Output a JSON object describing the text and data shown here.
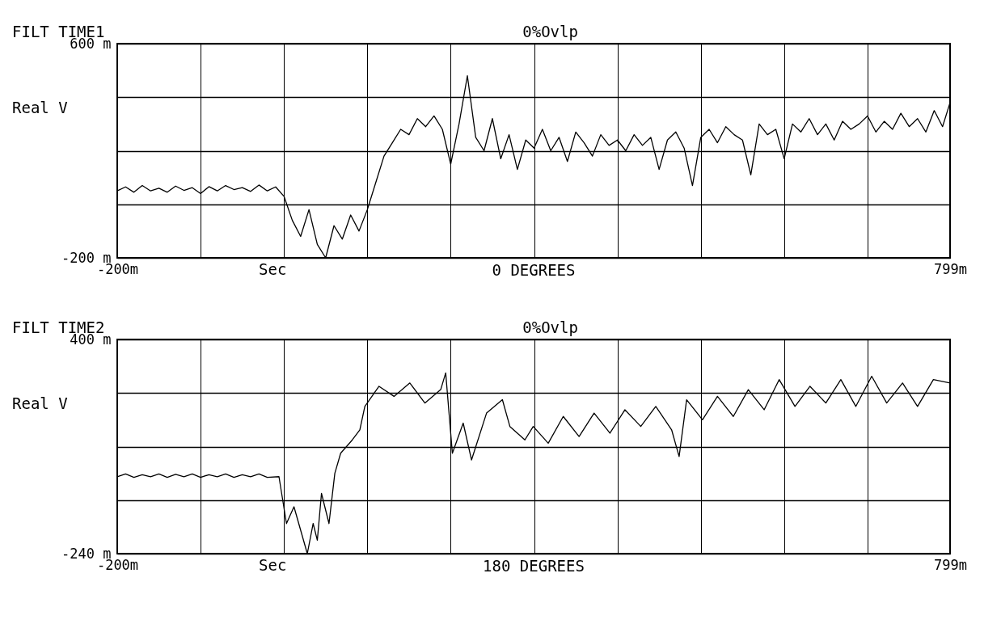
{
  "chart_data": [
    {
      "type": "line",
      "title": "FILT TIME1",
      "subtitle": "0%Ovlp",
      "xlabel": "Sec",
      "ylabel": "Real V",
      "annotations": [
        "0 DEGREES"
      ],
      "x": [
        -200,
        -190,
        -180,
        -170,
        -160,
        -150,
        -140,
        -130,
        -120,
        -110,
        -100,
        -90,
        -80,
        -70,
        -60,
        -50,
        -40,
        -30,
        -20,
        -10,
        0,
        10,
        20,
        30,
        40,
        50,
        60,
        70,
        80,
        90,
        100,
        110,
        120,
        130,
        140,
        150,
        160,
        170,
        180,
        190,
        200,
        210,
        220,
        230,
        240,
        250,
        260,
        270,
        280,
        290,
        300,
        310,
        320,
        330,
        340,
        350,
        360,
        370,
        380,
        390,
        400,
        410,
        420,
        430,
        440,
        450,
        460,
        470,
        480,
        490,
        500,
        510,
        520,
        530,
        540,
        550,
        560,
        570,
        580,
        590,
        600,
        610,
        620,
        630,
        640,
        650,
        660,
        670,
        680,
        690,
        700,
        710,
        720,
        730,
        740,
        750,
        760,
        770,
        780,
        790,
        799
      ],
      "series": [
        {
          "color": "#000000",
          "values": [
            50,
            65,
            45,
            70,
            50,
            60,
            45,
            68,
            52,
            62,
            40,
            66,
            50,
            70,
            55,
            62,
            48,
            72,
            50,
            65,
            30,
            -60,
            -120,
            -20,
            -150,
            -200,
            -80,
            -130,
            -40,
            -100,
            -20,
            80,
            180,
            230,
            280,
            260,
            320,
            290,
            330,
            280,
            150,
            300,
            480,
            250,
            200,
            320,
            170,
            260,
            130,
            240,
            210,
            280,
            200,
            250,
            160,
            270,
            230,
            180,
            260,
            220,
            240,
            200,
            260,
            220,
            250,
            130,
            240,
            270,
            210,
            70,
            250,
            280,
            230,
            290,
            260,
            240,
            110,
            300,
            260,
            280,
            170,
            300,
            270,
            320,
            260,
            300,
            240,
            310,
            280,
            300,
            330,
            270,
            310,
            280,
            340,
            290,
            320,
            270,
            350,
            290,
            380
          ]
        }
      ],
      "xlim": [
        -200,
        799
      ],
      "xticks": [
        {
          "value": -200,
          "label": "-200m"
        },
        {
          "value": -100,
          "label": null
        },
        {
          "value": 0,
          "label": null
        },
        {
          "value": 100,
          "label": null
        },
        {
          "value": 200,
          "label": null
        },
        {
          "value": 300,
          "label": null
        },
        {
          "value": 400,
          "label": null
        },
        {
          "value": 500,
          "label": null
        },
        {
          "value": 600,
          "label": null
        },
        {
          "value": 700,
          "label": null
        },
        {
          "value": 799,
          "label": "799m"
        }
      ],
      "ylim": [
        -200,
        600
      ],
      "yticks": [
        {
          "value": -200,
          "label": "-200 m"
        },
        {
          "value": 0,
          "label": null
        },
        {
          "value": 200,
          "label": null
        },
        {
          "value": 400,
          "label": null
        },
        {
          "value": 600,
          "label": "600 m"
        }
      ],
      "grid": true,
      "legend": false
    },
    {
      "type": "line",
      "title": "FILT TIME2",
      "subtitle": "0%Ovlp",
      "xlabel": "Sec",
      "ylabel": "Real V",
      "annotations": [
        "180 DEGREES"
      ],
      "x": [
        -200,
        -190,
        -180,
        -170,
        -160,
        -150,
        -140,
        -130,
        -120,
        -110,
        -100,
        -90,
        -80,
        -70,
        -60,
        -50,
        -40,
        -30,
        -20,
        -6,
        3,
        12,
        28,
        35,
        40,
        45,
        54,
        61,
        68,
        82,
        91,
        97,
        114,
        132,
        151,
        169,
        188,
        194,
        202,
        215,
        225,
        243,
        262,
        271,
        289,
        299,
        317,
        335,
        354,
        372,
        391,
        409,
        428,
        446,
        465,
        474,
        483,
        502,
        520,
        539,
        557,
        576,
        594,
        613,
        631,
        650,
        668,
        686,
        705,
        723,
        742,
        760,
        779,
        799
      ],
      "series": [
        {
          "color": "#000000",
          "values": [
            -10,
            -2,
            -12,
            -4,
            -10,
            -2,
            -12,
            -3,
            -10,
            -2,
            -12,
            -4,
            -10,
            -2,
            -12,
            -4,
            -10,
            -2,
            -12,
            -10,
            -150,
            -100,
            -240,
            -150,
            -200,
            -60,
            -150,
            0,
            60,
            100,
            130,
            200,
            260,
            230,
            270,
            210,
            250,
            300,
            60,
            150,
            40,
            180,
            220,
            140,
            100,
            140,
            90,
            170,
            110,
            180,
            120,
            190,
            140,
            200,
            130,
            50,
            220,
            160,
            230,
            170,
            250,
            190,
            280,
            200,
            260,
            210,
            280,
            200,
            290,
            210,
            270,
            200,
            280,
            270
          ]
        }
      ],
      "xlim": [
        -200,
        799
      ],
      "xticks": [
        {
          "value": -200,
          "label": "-200m"
        },
        {
          "value": -100,
          "label": null
        },
        {
          "value": 0,
          "label": null
        },
        {
          "value": 100,
          "label": null
        },
        {
          "value": 200,
          "label": null
        },
        {
          "value": 300,
          "label": null
        },
        {
          "value": 400,
          "label": null
        },
        {
          "value": 500,
          "label": null
        },
        {
          "value": 600,
          "label": null
        },
        {
          "value": 700,
          "label": null
        },
        {
          "value": 799,
          "label": "799m"
        }
      ],
      "ylim": [
        -240,
        400
      ],
      "yticks": [
        {
          "value": -240,
          "label": "-240 m"
        },
        {
          "value": -80,
          "label": null
        },
        {
          "value": 80,
          "label": null
        },
        {
          "value": 240,
          "label": null
        },
        {
          "value": 400,
          "label": "400 m"
        }
      ],
      "grid": true,
      "legend": false
    }
  ]
}
